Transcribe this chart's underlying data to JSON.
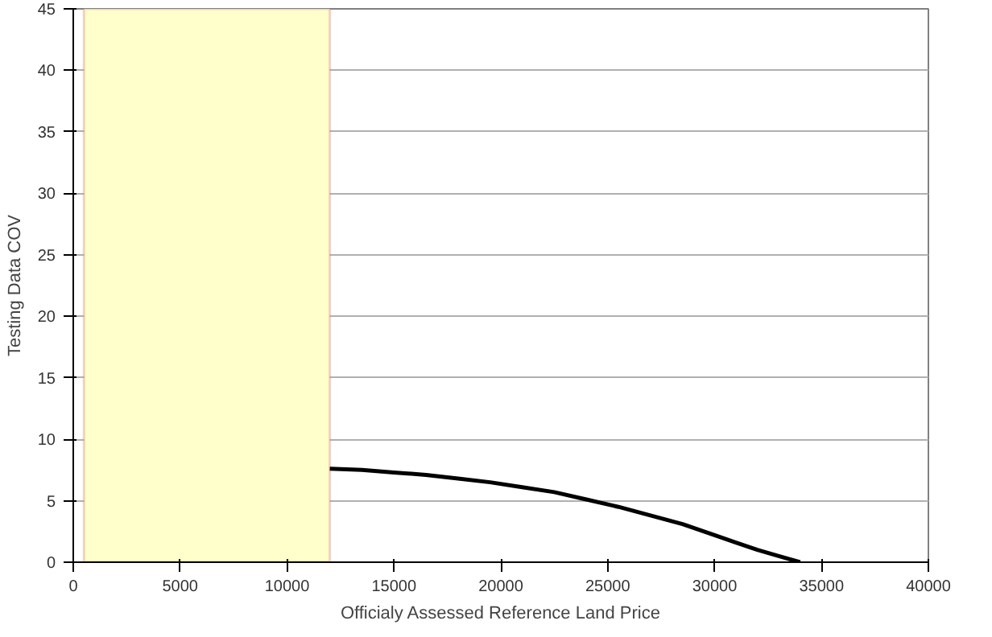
{
  "chart_data": {
    "type": "line",
    "xlabel": "Officialy Assessed Reference Land Price",
    "ylabel": "Testing Data COV",
    "x": [
      12000,
      13500,
      15000,
      16500,
      18000,
      19500,
      21000,
      22500,
      24000,
      25500,
      27000,
      28500,
      30000,
      31000,
      32000,
      33000,
      34000
    ],
    "series": [
      {
        "color": "#000000",
        "values": [
          7.6,
          7.5,
          7.3,
          7.1,
          6.8,
          6.5,
          6.1,
          5.7,
          5.1,
          4.5,
          3.8,
          3.1,
          2.2,
          1.6,
          1.0,
          0.5,
          0
        ]
      }
    ],
    "xlim": [
      0,
      40000
    ],
    "xticks": [
      0,
      5000,
      10000,
      15000,
      20000,
      25000,
      30000,
      35000,
      40000
    ],
    "ylim": [
      0,
      45
    ],
    "yticks": [
      0,
      5,
      10,
      15,
      20,
      25,
      30,
      35,
      40,
      45
    ],
    "grid": "y",
    "marker": "none",
    "line_style": "solid",
    "bands": [
      {
        "axis": "x",
        "from": 500,
        "to": 12000,
        "color": "#ffffcc"
      }
    ]
  }
}
